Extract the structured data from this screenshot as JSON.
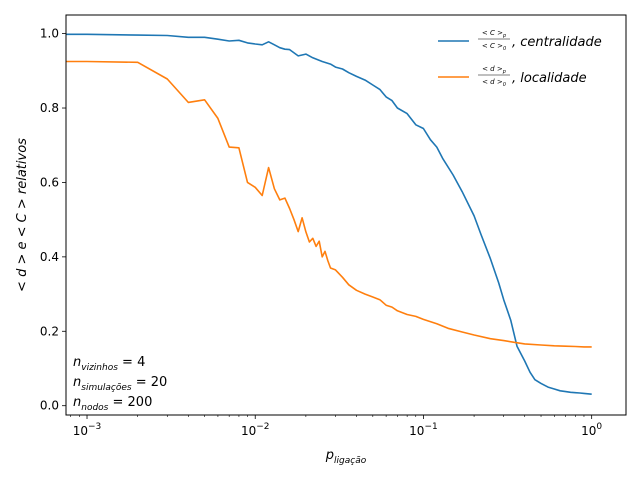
{
  "chart_data": {
    "type": "line",
    "xscale": "log",
    "xlim": [
      0.00075,
      1.6
    ],
    "ylim": [
      -0.025,
      1.05
    ],
    "xlabel": {
      "main": "p",
      "sub": "ligação"
    },
    "ylabel": "< d > e < C > relativos",
    "x_ticks": [
      {
        "value": 0.001,
        "base": "10",
        "exp": "−3"
      },
      {
        "value": 0.01,
        "base": "10",
        "exp": "−2"
      },
      {
        "value": 0.1,
        "base": "10",
        "exp": "−1"
      },
      {
        "value": 1,
        "base": "10",
        "exp": "0"
      }
    ],
    "y_ticks": [
      {
        "value": 0.0,
        "label": "0.0"
      },
      {
        "value": 0.2,
        "label": "0.2"
      },
      {
        "value": 0.4,
        "label": "0.4"
      },
      {
        "value": 0.6,
        "label": "0.6"
      },
      {
        "value": 0.8,
        "label": "0.8"
      },
      {
        "value": 1.0,
        "label": "1.0"
      }
    ],
    "grid": false,
    "legend_position": "top-right",
    "series": [
      {
        "name": "centralidade",
        "legend_fraction": {
          "num": "< C >",
          "num_sub": "p",
          "den": "< C >",
          "den_sub": "0"
        },
        "legend_suffix": ", centralidade",
        "color": "#1f77b4",
        "x": [
          0.0001,
          0.001,
          0.002,
          0.003,
          0.004,
          0.005,
          0.006,
          0.007,
          0.008,
          0.009,
          0.01,
          0.011,
          0.012,
          0.013,
          0.014,
          0.015,
          0.016,
          0.018,
          0.02,
          0.022,
          0.025,
          0.028,
          0.03,
          0.033,
          0.036,
          0.04,
          0.045,
          0.05,
          0.055,
          0.06,
          0.065,
          0.07,
          0.08,
          0.09,
          0.1,
          0.11,
          0.12,
          0.13,
          0.15,
          0.17,
          0.2,
          0.22,
          0.25,
          0.28,
          0.3,
          0.33,
          0.36,
          0.4,
          0.43,
          0.46,
          0.5,
          0.55,
          0.6,
          0.65,
          0.7,
          0.75,
          0.8,
          0.85,
          0.9,
          0.95,
          1.0
        ],
        "y": [
          0.998,
          0.998,
          0.996,
          0.995,
          0.99,
          0.99,
          0.985,
          0.98,
          0.982,
          0.975,
          0.972,
          0.97,
          0.978,
          0.97,
          0.962,
          0.958,
          0.957,
          0.94,
          0.945,
          0.935,
          0.925,
          0.918,
          0.91,
          0.905,
          0.895,
          0.885,
          0.875,
          0.862,
          0.85,
          0.83,
          0.82,
          0.8,
          0.785,
          0.755,
          0.745,
          0.715,
          0.695,
          0.665,
          0.62,
          0.575,
          0.51,
          0.46,
          0.395,
          0.33,
          0.285,
          0.23,
          0.16,
          0.12,
          0.09,
          0.07,
          0.06,
          0.05,
          0.045,
          0.04,
          0.038,
          0.036,
          0.035,
          0.034,
          0.033,
          0.032,
          0.031
        ]
      },
      {
        "name": "localidade",
        "legend_fraction": {
          "num": "< d >",
          "num_sub": "p",
          "den": "< d >",
          "den_sub": "0"
        },
        "legend_suffix": ", localidade",
        "color": "#ff7f0e",
        "x": [
          0.0001,
          0.001,
          0.002,
          0.003,
          0.004,
          0.005,
          0.006,
          0.007,
          0.008,
          0.009,
          0.01,
          0.011,
          0.012,
          0.013,
          0.014,
          0.015,
          0.016,
          0.017,
          0.018,
          0.019,
          0.02,
          0.021,
          0.022,
          0.023,
          0.024,
          0.025,
          0.026,
          0.027,
          0.028,
          0.03,
          0.033,
          0.036,
          0.04,
          0.045,
          0.05,
          0.055,
          0.06,
          0.065,
          0.07,
          0.08,
          0.09,
          0.1,
          0.12,
          0.14,
          0.17,
          0.2,
          0.25,
          0.3,
          0.35,
          0.4,
          0.5,
          0.6,
          0.7,
          0.8,
          0.9,
          1.0
        ],
        "y": [
          0.925,
          0.925,
          0.923,
          0.878,
          0.815,
          0.822,
          0.772,
          0.695,
          0.693,
          0.6,
          0.587,
          0.565,
          0.64,
          0.583,
          0.553,
          0.558,
          0.53,
          0.5,
          0.468,
          0.505,
          0.467,
          0.44,
          0.45,
          0.428,
          0.442,
          0.4,
          0.415,
          0.39,
          0.37,
          0.365,
          0.345,
          0.325,
          0.31,
          0.3,
          0.292,
          0.285,
          0.27,
          0.265,
          0.255,
          0.245,
          0.24,
          0.232,
          0.22,
          0.208,
          0.198,
          0.19,
          0.18,
          0.175,
          0.17,
          0.166,
          0.163,
          0.161,
          0.16,
          0.159,
          0.158,
          0.158
        ]
      }
    ],
    "annotations": [
      {
        "main": "n",
        "sub": "vizinhos",
        "rest": " = 4"
      },
      {
        "main": "n",
        "sub": "simulações",
        "rest": " = 20"
      },
      {
        "main": "n",
        "sub": "nodos",
        "rest": " = 200"
      }
    ]
  }
}
